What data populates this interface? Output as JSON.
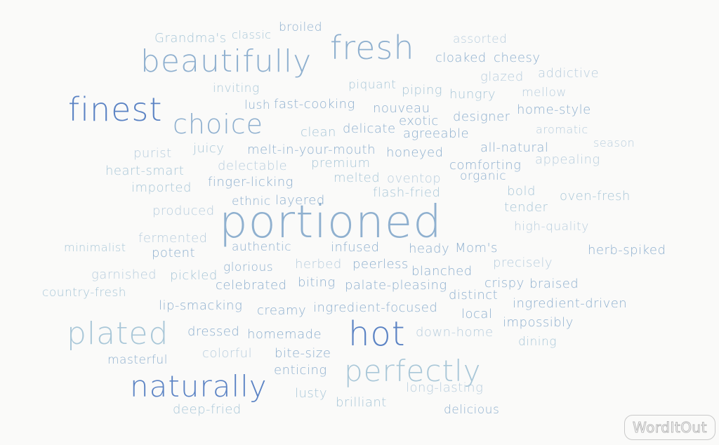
{
  "logo": {
    "text": "WordItOut"
  },
  "colors": {
    "dark": "#5b83c4",
    "mid": "#8fb0cf",
    "light": "#a9c7d8",
    "pale": "#b9cede"
  },
  "words": [
    "broiled",
    "Grandma's",
    "classic",
    "fresh",
    "assorted",
    "beautifully",
    "cloaked",
    "cheesy",
    "glazed",
    "addictive",
    "inviting",
    "piquant",
    "piping",
    "hungry",
    "mellow",
    "finest",
    "lush",
    "fast-cooking",
    "nouveau",
    "home-style",
    "choice",
    "exotic",
    "designer",
    "clean",
    "delicate",
    "agreeable",
    "aromatic",
    "purist",
    "juicy",
    "melt-in-your-mouth",
    "honeyed",
    "all-natural",
    "season",
    "heart-smart",
    "delectable",
    "premium",
    "comforting",
    "appealing",
    "imported",
    "finger-licking",
    "melted",
    "oventop",
    "organic",
    "bold",
    "ethnic",
    "layered",
    "flash-fried",
    "oven-fresh",
    "produced",
    "tender",
    "portioned",
    "high-quality",
    "fermented",
    "minimalist",
    "authentic",
    "infused",
    "heady",
    "Mom's",
    "herb-spiked",
    "potent",
    "glorious",
    "herbed",
    "peerless",
    "precisely",
    "garnished",
    "pickled",
    "blanched",
    "country-fresh",
    "celebrated",
    "biting",
    "palate-pleasing",
    "crispy",
    "braised",
    "distinct",
    "lip-smacking",
    "creamy",
    "ingredient-focused",
    "ingredient-driven",
    "local",
    "plated",
    "dressed",
    "homemade",
    "hot",
    "impossibly",
    "down-home",
    "dining",
    "masterful",
    "colorful",
    "bite-size",
    "perfectly",
    "naturally",
    "enticing",
    "long-lasting",
    "lusty",
    "brilliant",
    "deep-fried",
    "delicious"
  ]
}
